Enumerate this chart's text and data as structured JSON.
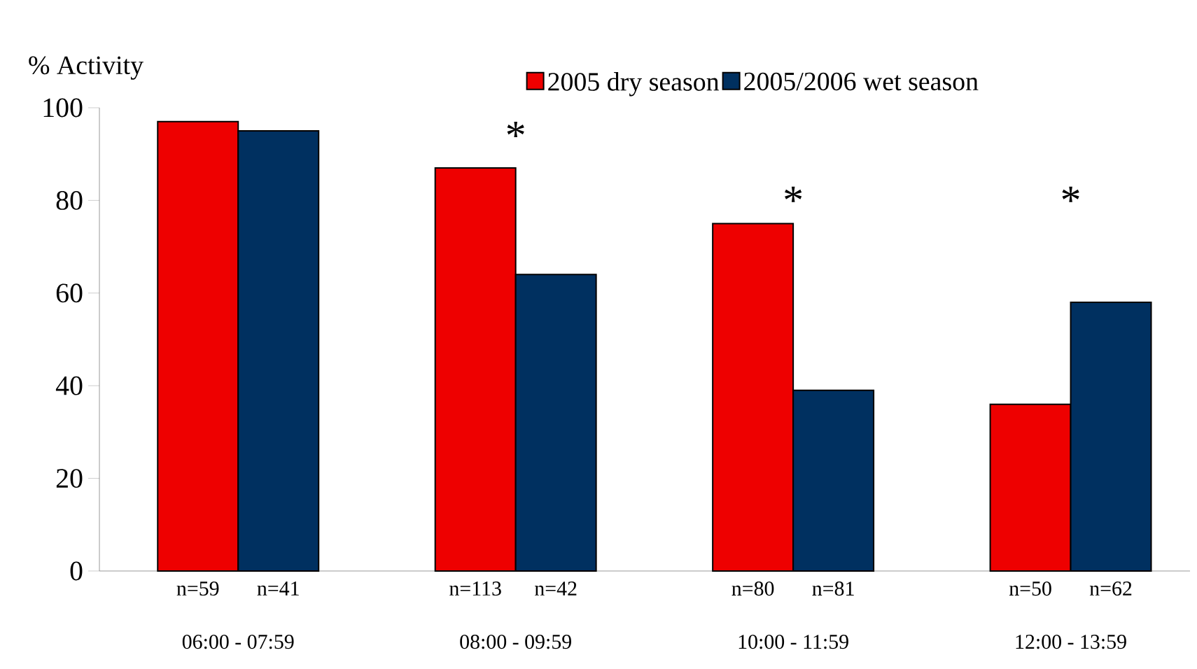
{
  "chart_data": {
    "type": "bar",
    "ylabel": "% Activity",
    "categories": [
      "06:00 - 07:59",
      "08:00 - 09:59",
      "10:00 - 11:59",
      "12:00 - 13:59"
    ],
    "series": [
      {
        "name": "2005 dry season",
        "color": "#ee0000",
        "values": [
          97,
          87,
          75,
          36
        ]
      },
      {
        "name": "2005/2006 wet season",
        "color": "#003060",
        "values": [
          95,
          64,
          39,
          58
        ]
      }
    ],
    "annotations": [
      "*",
      "*",
      "*",
      "n=59",
      "n=41",
      "n=113",
      "n=42",
      "n=80",
      "n=81",
      "n=50",
      "n=62"
    ],
    "ylim": [
      0,
      100
    ],
    "yticks": [
      0,
      20,
      40,
      60,
      80,
      100
    ],
    "legend": "top",
    "grid": false
  }
}
